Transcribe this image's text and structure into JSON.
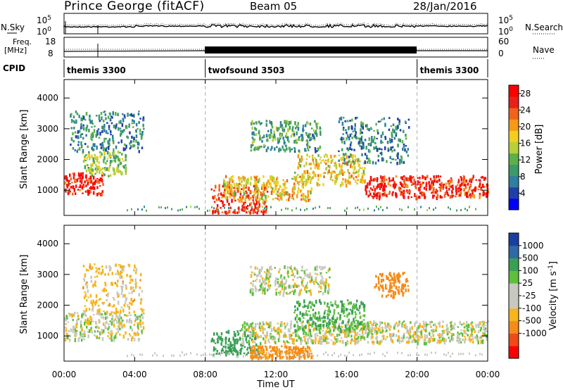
{
  "header": {
    "radar": "Prince George (fitACF)",
    "beam": "Beam 05",
    "date": "28/Jan/2016"
  },
  "left_labels": {
    "nsky": "N.Sky",
    "freq_line1": "Freq.",
    "freq_line2": "[MHz]",
    "cpid": "CPID",
    "nsky_top": "10^5",
    "nsky_bottom": "10^0",
    "freq_top": "18",
    "freq_bottom": "8"
  },
  "right_labels": {
    "nsearch": "N.Search",
    "nave": "Nave",
    "nsearch_top": "10^5",
    "nsearch_bottom": "10^0",
    "nave_top": "60",
    "nave_bottom": "0"
  },
  "cpid_segments": [
    {
      "label": "themis 3300",
      "start": 0,
      "end": 8
    },
    {
      "label": "twofsound 3503",
      "start": 8,
      "end": 20
    },
    {
      "label": "themis 3300",
      "start": 20,
      "end": 24
    }
  ],
  "colors": {
    "power": [
      "#0000ff",
      "#1f3fa8",
      "#2e7fa0",
      "#3c9a68",
      "#5bb04a",
      "#b8cf3a",
      "#f2cf1f",
      "#f59a17",
      "#f0631a",
      "#e8201c",
      "#ff0000"
    ],
    "velocity_bins": [
      "#ff0000",
      "#f04a18",
      "#f58c1a",
      "#f5b51d",
      "#c8c8c0",
      "#c8c8c0",
      "#5dbf3c",
      "#3a9f55",
      "#2f6aa6",
      "#1a3fa0"
    ]
  },
  "chart_data": [
    {
      "type": "heatmap",
      "panel": "power",
      "title": "",
      "xlabel": "",
      "ylabel": "Slant Range [km]",
      "xlim": [
        0,
        24
      ],
      "ylim": [
        180,
        4600
      ],
      "x_tick_labels": [
        "00:00",
        "04:00",
        "08:00",
        "12:00",
        "16:00",
        "20:00",
        "00:00"
      ],
      "y_ticks": [
        1000,
        2000,
        3000,
        4000
      ],
      "colorbar": {
        "label": "Power [dB]",
        "range": [
          0,
          30
        ],
        "ticks": [
          4,
          8,
          12,
          16,
          20,
          24,
          28
        ]
      },
      "regions": [
        {
          "t": [
            0.0,
            2.2
          ],
          "r": [
            900,
            1600
          ],
          "power": 26
        },
        {
          "t": [
            1.0,
            3.5
          ],
          "r": [
            1500,
            2300
          ],
          "power": 14
        },
        {
          "t": [
            0.3,
            4.5
          ],
          "r": [
            2300,
            3600
          ],
          "power": 8
        },
        {
          "t": [
            8.3,
            11.5
          ],
          "r": [
            300,
            1200
          ],
          "power": 26
        },
        {
          "t": [
            9.0,
            14.0
          ],
          "r": [
            700,
            1500
          ],
          "power": 18
        },
        {
          "t": [
            10.5,
            14.5
          ],
          "r": [
            2300,
            3300
          ],
          "power": 10
        },
        {
          "t": [
            13.0,
            17.0
          ],
          "r": [
            1200,
            2200
          ],
          "power": 18
        },
        {
          "t": [
            15.5,
            19.5
          ],
          "r": [
            1900,
            3400
          ],
          "power": 8
        },
        {
          "t": [
            17.0,
            24.0
          ],
          "r": [
            800,
            1500
          ],
          "power": 26
        }
      ]
    },
    {
      "type": "heatmap",
      "panel": "velocity",
      "title": "",
      "xlabel": "Time UT",
      "ylabel": "Slant Range [km]",
      "xlim": [
        0,
        24
      ],
      "ylim": [
        180,
        4600
      ],
      "x_tick_labels": [
        "00:00",
        "04:00",
        "08:00",
        "12:00",
        "16:00",
        "20:00",
        "00:00"
      ],
      "y_ticks": [
        1000,
        2000,
        3000,
        4000
      ],
      "colorbar": {
        "label": "Velocity [m s^-1]",
        "tick_labels": [
          "1000",
          "500",
          "100",
          "25",
          "-25",
          "-100",
          "-500",
          "-1000"
        ]
      },
      "regions": [
        {
          "t": [
            0.0,
            4.5
          ],
          "r": [
            900,
            1800
          ],
          "velocity": 0
        },
        {
          "t": [
            1.0,
            4.5
          ],
          "r": [
            1800,
            3400
          ],
          "velocity": -50
        },
        {
          "t": [
            8.3,
            11.0
          ],
          "r": [
            400,
            1200
          ],
          "velocity": 300
        },
        {
          "t": [
            10.5,
            14.0
          ],
          "r": [
            300,
            700
          ],
          "velocity": -150
        },
        {
          "t": [
            10.0,
            24.0
          ],
          "r": [
            800,
            1500
          ],
          "velocity": 0
        },
        {
          "t": [
            13.0,
            17.0
          ],
          "r": [
            1200,
            2200
          ],
          "velocity": 100
        },
        {
          "t": [
            10.5,
            15.0
          ],
          "r": [
            2400,
            3300
          ],
          "velocity": 0
        },
        {
          "t": [
            17.5,
            19.5
          ],
          "r": [
            2300,
            3100
          ],
          "velocity": -300
        }
      ]
    }
  ]
}
